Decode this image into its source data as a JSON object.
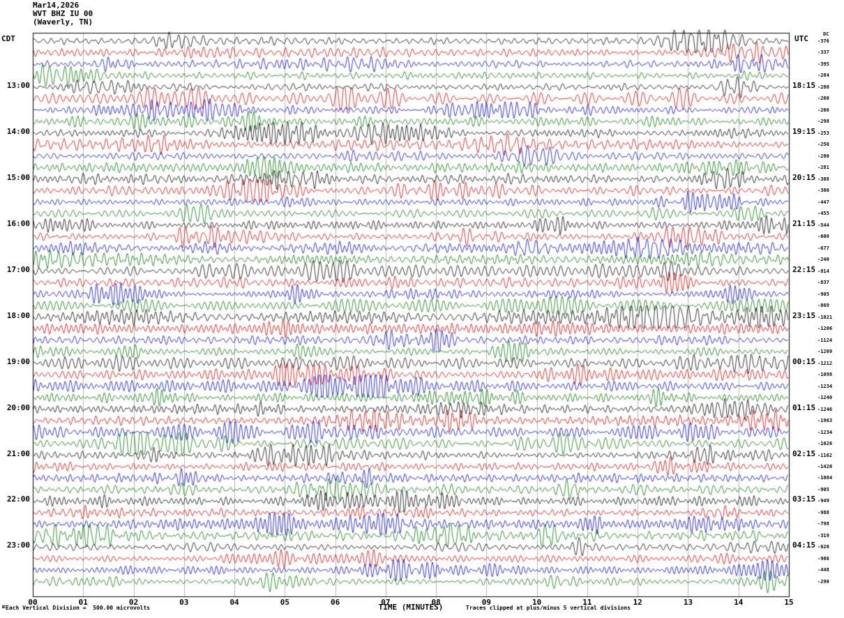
{
  "header": {
    "date": "Mar14,2026",
    "station": "WVT BHZ IU 00",
    "location": "(Waverly, TN)",
    "left_timezone": "CDT",
    "right_timezone": "UTC",
    "dc_column_label": "DC"
  },
  "x_axis": {
    "title": "TIME (MINUTES)",
    "ticks": [
      "00",
      "01",
      "02",
      "03",
      "04",
      "05",
      "06",
      "07",
      "08",
      "09",
      "10",
      "11",
      "12",
      "13",
      "14",
      "15"
    ]
  },
  "footer": {
    "scale_note": "Each Vertical Division =  500.00 microvolts",
    "clip_note": "Traces clipped at plus/minus 5 vertical divisions",
    "corner_mark": "M"
  },
  "chart_data": {
    "type": "line",
    "subtype": "helicorder-seismogram",
    "title": "WVT BHZ IU 00 (Waverly, TN) Mar14,2026",
    "xlabel": "TIME (MINUTES)",
    "x_range_minutes": [
      0,
      15
    ],
    "row_duration_minutes": 15,
    "grid": "vertical gridline at every minute",
    "grid_color": "#b2b6ae",
    "colors": {
      "black": "#000000",
      "red": "#d40000",
      "blue": "#0000c8",
      "green": "#007400"
    },
    "rows": [
      {
        "cdt_label": "",
        "utc_label": "",
        "color": "black",
        "dc": -376
      },
      {
        "cdt_label": "",
        "utc_label": "",
        "color": "red",
        "dc": -337
      },
      {
        "cdt_label": "",
        "utc_label": "",
        "color": "blue",
        "dc": -395
      },
      {
        "cdt_label": "",
        "utc_label": "",
        "color": "green",
        "dc": -284
      },
      {
        "cdt_label": "13:00",
        "utc_label": "18:15",
        "color": "black",
        "dc": -280
      },
      {
        "cdt_label": "",
        "utc_label": "",
        "color": "red",
        "dc": -260
      },
      {
        "cdt_label": "",
        "utc_label": "",
        "color": "blue",
        "dc": -266
      },
      {
        "cdt_label": "",
        "utc_label": "",
        "color": "green",
        "dc": -298
      },
      {
        "cdt_label": "14:00",
        "utc_label": "19:15",
        "color": "black",
        "dc": -253
      },
      {
        "cdt_label": "",
        "utc_label": "",
        "color": "red",
        "dc": -250
      },
      {
        "cdt_label": "",
        "utc_label": "",
        "color": "blue",
        "dc": -280
      },
      {
        "cdt_label": "",
        "utc_label": "",
        "color": "green",
        "dc": -281
      },
      {
        "cdt_label": "15:00",
        "utc_label": "20:15",
        "color": "black",
        "dc": -388
      },
      {
        "cdt_label": "",
        "utc_label": "",
        "color": "red",
        "dc": -380
      },
      {
        "cdt_label": "",
        "utc_label": "",
        "color": "blue",
        "dc": -447
      },
      {
        "cdt_label": "",
        "utc_label": "",
        "color": "green",
        "dc": -455
      },
      {
        "cdt_label": "16:00",
        "utc_label": "21:15",
        "color": "black",
        "dc": -544
      },
      {
        "cdt_label": "",
        "utc_label": "",
        "color": "red",
        "dc": -608
      },
      {
        "cdt_label": "",
        "utc_label": "",
        "color": "blue",
        "dc": -677
      },
      {
        "cdt_label": "",
        "utc_label": "",
        "color": "green",
        "dc": -240
      },
      {
        "cdt_label": "17:00",
        "utc_label": "22:15",
        "color": "black",
        "dc": -814
      },
      {
        "cdt_label": "",
        "utc_label": "",
        "color": "red",
        "dc": -837
      },
      {
        "cdt_label": "",
        "utc_label": "",
        "color": "blue",
        "dc": -905
      },
      {
        "cdt_label": "",
        "utc_label": "",
        "color": "green",
        "dc": -869
      },
      {
        "cdt_label": "18:00",
        "utc_label": "23:15",
        "color": "black",
        "dc": -1021
      },
      {
        "cdt_label": "",
        "utc_label": "",
        "color": "red",
        "dc": -1206
      },
      {
        "cdt_label": "",
        "utc_label": "",
        "color": "blue",
        "dc": -1124
      },
      {
        "cdt_label": "",
        "utc_label": "",
        "color": "green",
        "dc": -1209
      },
      {
        "cdt_label": "19:00",
        "utc_label": "00:15",
        "color": "black",
        "dc": -1212
      },
      {
        "cdt_label": "",
        "utc_label": "",
        "color": "red",
        "dc": -1098
      },
      {
        "cdt_label": "",
        "utc_label": "",
        "color": "blue",
        "dc": -1234
      },
      {
        "cdt_label": "",
        "utc_label": "",
        "color": "green",
        "dc": -1240
      },
      {
        "cdt_label": "20:00",
        "utc_label": "01:15",
        "color": "black",
        "dc": -1246
      },
      {
        "cdt_label": "",
        "utc_label": "",
        "color": "red",
        "dc": -1963
      },
      {
        "cdt_label": "",
        "utc_label": "",
        "color": "blue",
        "dc": -1234
      },
      {
        "cdt_label": "",
        "utc_label": "",
        "color": "green",
        "dc": -1026
      },
      {
        "cdt_label": "21:00",
        "utc_label": "02:15",
        "color": "black",
        "dc": -1162
      },
      {
        "cdt_label": "",
        "utc_label": "",
        "color": "red",
        "dc": -1420
      },
      {
        "cdt_label": "",
        "utc_label": "",
        "color": "blue",
        "dc": -1084
      },
      {
        "cdt_label": "",
        "utc_label": "",
        "color": "green",
        "dc": -905
      },
      {
        "cdt_label": "22:00",
        "utc_label": "03:15",
        "color": "black",
        "dc": -949
      },
      {
        "cdt_label": "",
        "utc_label": "",
        "color": "red",
        "dc": -988
      },
      {
        "cdt_label": "",
        "utc_label": "",
        "color": "blue",
        "dc": -798
      },
      {
        "cdt_label": "",
        "utc_label": "",
        "color": "green",
        "dc": -319
      },
      {
        "cdt_label": "23:00",
        "utc_label": "04:15",
        "color": "black",
        "dc": -620
      },
      {
        "cdt_label": "",
        "utc_label": "",
        "color": "red",
        "dc": -986
      },
      {
        "cdt_label": "",
        "utc_label": "",
        "color": "blue",
        "dc": -448
      },
      {
        "cdt_label": "",
        "utc_label": "",
        "color": "green",
        "dc": -290
      }
    ]
  }
}
